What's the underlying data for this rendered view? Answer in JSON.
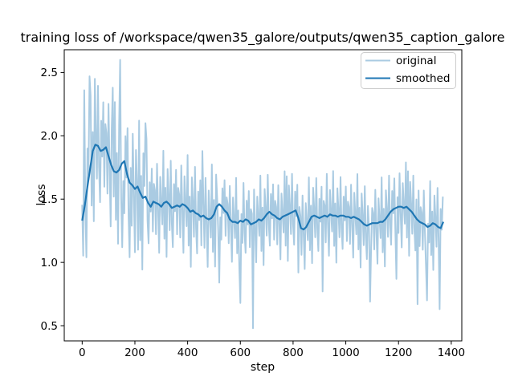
{
  "chart_data": {
    "type": "line",
    "title": "training loss of /workspace/qwen35_galore/outputs/qwen35_caption_galore",
    "xlabel": "step",
    "ylabel": "loss",
    "xlim": [
      -68,
      1440
    ],
    "ylim": [
      0.38,
      2.68
    ],
    "grid": false,
    "legend_position": "upper right",
    "xticks": {
      "values": [
        0,
        200,
        400,
        600,
        800,
        1000,
        1200,
        1400
      ],
      "labels": [
        "0",
        "200",
        "400",
        "600",
        "800",
        "1000",
        "1200",
        "1400"
      ]
    },
    "yticks": {
      "values": [
        0.5,
        1.0,
        1.5,
        2.0,
        2.5
      ],
      "labels": [
        "0.5",
        "1.0",
        "1.5",
        "2.0",
        "2.5"
      ]
    },
    "legend": [
      {
        "label": "original"
      },
      {
        "label": "smoothed"
      }
    ],
    "series": [
      {
        "name": "original",
        "color": "#1f77b4",
        "opacity": 0.38,
        "generator": {
          "comment": "noisy per-step loss band centered on smoothed curve",
          "x_start": 0,
          "x_step": 4,
          "count": 343,
          "pattern": [
            0.1,
            -0.26,
            0.33,
            -0.06,
            -0.4,
            0.24,
            0.03,
            -0.16,
            0.44,
            -0.3,
            0.12,
            -0.46,
            0.28,
            0.07,
            -0.21,
            0.38,
            -0.12,
            -0.33,
            0.19,
            -0.04,
            0.3,
            -0.24,
            0.15
          ],
          "scales": [
            {
              "upto": 250,
              "amp": 1.25
            },
            {
              "upto": 520,
              "amp": 0.95
            },
            {
              "upto": 99999,
              "amp": 0.8
            }
          ],
          "overrides": {
            "8": 2.36,
            "28": 2.47,
            "48": 2.45,
            "116": 2.38,
            "144": 2.6,
            "152": 1.12,
            "180": 1.04,
            "212": 1.1,
            "240": 2.1,
            "456": 1.88,
            "520": 0.84,
            "600": 0.68,
            "648": 0.48,
            "776": 1.68,
            "820": 0.92,
            "912": 0.77,
            "928": 1.7,
            "1092": 0.69,
            "1192": 0.87,
            "1236": 1.72,
            "1272": 0.67,
            "1308": 0.7,
            "1356": 0.63,
            "1368": 1.52
          }
        }
      },
      {
        "name": "smoothed",
        "color": "#1f77b4",
        "opacity": 1,
        "x": [
          0,
          10,
          20,
          30,
          40,
          50,
          60,
          70,
          80,
          90,
          100,
          110,
          120,
          130,
          140,
          150,
          160,
          170,
          180,
          190,
          200,
          210,
          220,
          230,
          240,
          250,
          260,
          270,
          280,
          290,
          300,
          310,
          320,
          330,
          340,
          350,
          360,
          370,
          380,
          390,
          400,
          410,
          420,
          430,
          440,
          450,
          460,
          470,
          480,
          490,
          500,
          510,
          520,
          530,
          540,
          550,
          560,
          570,
          580,
          590,
          600,
          610,
          620,
          630,
          640,
          650,
          660,
          670,
          680,
          690,
          700,
          710,
          720,
          730,
          740,
          750,
          760,
          770,
          780,
          790,
          800,
          810,
          820,
          830,
          840,
          850,
          860,
          870,
          880,
          890,
          900,
          910,
          920,
          930,
          940,
          950,
          960,
          970,
          980,
          990,
          1000,
          1010,
          1020,
          1030,
          1040,
          1050,
          1060,
          1070,
          1080,
          1090,
          1100,
          1110,
          1120,
          1130,
          1140,
          1150,
          1160,
          1170,
          1180,
          1190,
          1200,
          1210,
          1220,
          1230,
          1240,
          1250,
          1260,
          1270,
          1280,
          1290,
          1300,
          1310,
          1320,
          1330,
          1340,
          1350,
          1360,
          1370
        ],
        "y": [
          1.33,
          1.45,
          1.6,
          1.74,
          1.88,
          1.93,
          1.92,
          1.88,
          1.89,
          1.91,
          1.84,
          1.77,
          1.72,
          1.71,
          1.73,
          1.78,
          1.8,
          1.7,
          1.63,
          1.61,
          1.58,
          1.6,
          1.55,
          1.51,
          1.52,
          1.47,
          1.44,
          1.48,
          1.47,
          1.46,
          1.44,
          1.47,
          1.48,
          1.46,
          1.43,
          1.44,
          1.45,
          1.44,
          1.46,
          1.45,
          1.43,
          1.4,
          1.41,
          1.39,
          1.38,
          1.36,
          1.37,
          1.35,
          1.34,
          1.35,
          1.38,
          1.44,
          1.46,
          1.44,
          1.41,
          1.39,
          1.34,
          1.32,
          1.32,
          1.31,
          1.33,
          1.32,
          1.34,
          1.33,
          1.3,
          1.31,
          1.32,
          1.34,
          1.33,
          1.35,
          1.38,
          1.4,
          1.38,
          1.37,
          1.35,
          1.34,
          1.36,
          1.37,
          1.38,
          1.39,
          1.4,
          1.41,
          1.35,
          1.27,
          1.26,
          1.28,
          1.32,
          1.36,
          1.37,
          1.36,
          1.35,
          1.36,
          1.37,
          1.36,
          1.38,
          1.37,
          1.37,
          1.36,
          1.37,
          1.37,
          1.36,
          1.36,
          1.35,
          1.36,
          1.35,
          1.34,
          1.32,
          1.3,
          1.29,
          1.3,
          1.31,
          1.31,
          1.31,
          1.32,
          1.32,
          1.34,
          1.37,
          1.4,
          1.42,
          1.43,
          1.44,
          1.44,
          1.43,
          1.44,
          1.42,
          1.4,
          1.37,
          1.34,
          1.32,
          1.31,
          1.3,
          1.28,
          1.29,
          1.31,
          1.3,
          1.28,
          1.27,
          1.32
        ]
      }
    ],
    "colors": {
      "axes": "#000000",
      "legend_border": "#cccccc",
      "background": "#ffffff"
    }
  }
}
